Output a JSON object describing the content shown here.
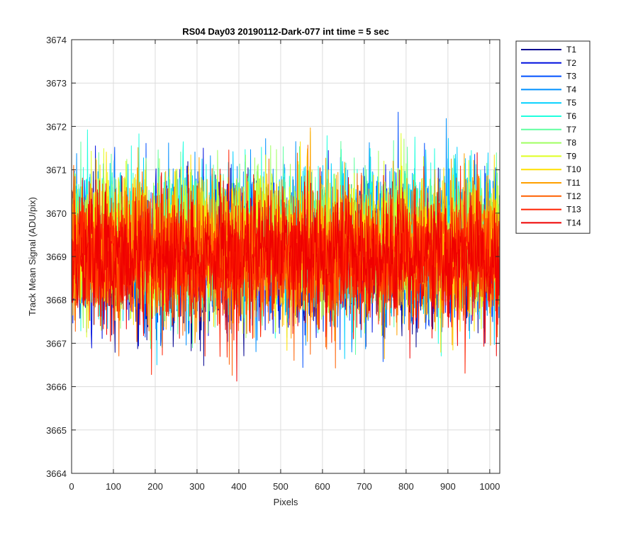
{
  "chart_data": {
    "type": "line",
    "title": "RS04 Day03 20190112-Dark-077 int time = 5 sec",
    "xlabel": "Pixels",
    "ylabel": "Track Mean Signal (ADU/pix)",
    "xlim": [
      0,
      1024
    ],
    "ylim": [
      3664,
      3674
    ],
    "xticks": [
      0,
      100,
      200,
      300,
      400,
      500,
      600,
      700,
      800,
      900,
      1000
    ],
    "yticks": [
      3664,
      3665,
      3666,
      3667,
      3668,
      3669,
      3670,
      3671,
      3672,
      3673,
      3674
    ],
    "grid": true,
    "legend_position": "outside-top-right",
    "n_points": 1024,
    "series": [
      {
        "name": "T1",
        "color": "#00008F",
        "mean": 3669.0,
        "spread": 0.8
      },
      {
        "name": "T2",
        "color": "#0010DF",
        "mean": 3669.0,
        "spread": 0.82
      },
      {
        "name": "T3",
        "color": "#0050FF",
        "mean": 3669.1,
        "spread": 0.82
      },
      {
        "name": "T4",
        "color": "#0090FF",
        "mean": 3669.3,
        "spread": 0.8
      },
      {
        "name": "T5",
        "color": "#00D0FF",
        "mean": 3669.5,
        "spread": 0.8
      },
      {
        "name": "T6",
        "color": "#20FFDF",
        "mean": 3669.5,
        "spread": 0.8
      },
      {
        "name": "T7",
        "color": "#60FF9F",
        "mean": 3669.4,
        "spread": 0.8
      },
      {
        "name": "T8",
        "color": "#9FFF60",
        "mean": 3669.3,
        "spread": 0.8
      },
      {
        "name": "T9",
        "color": "#DFFF20",
        "mean": 3669.3,
        "spread": 0.8
      },
      {
        "name": "T10",
        "color": "#FFE000",
        "mean": 3669.2,
        "spread": 0.8
      },
      {
        "name": "T11",
        "color": "#FFA000",
        "mean": 3669.1,
        "spread": 0.8
      },
      {
        "name": "T12",
        "color": "#FF6000",
        "mean": 3669.0,
        "spread": 0.78
      },
      {
        "name": "T13",
        "color": "#FF2000",
        "mean": 3669.0,
        "spread": 0.76
      },
      {
        "name": "T14",
        "color": "#EF0000",
        "mean": 3669.0,
        "spread": 0.75
      }
    ]
  }
}
